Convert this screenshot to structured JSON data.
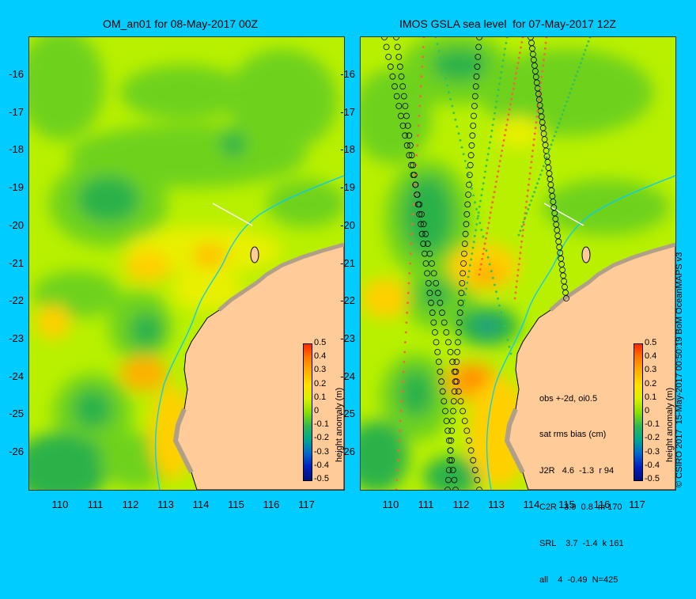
{
  "left_title": "OM_an01 for 08-May-2017 00Z",
  "right_title": "IMOS GSLA sea level  for 07-May-2017 12Z",
  "y_ticks": [
    "-16",
    "-17",
    "-18",
    "-19",
    "-20",
    "-21",
    "-22",
    "-23",
    "-24",
    "-25",
    "-26"
  ],
  "x_ticks": [
    "110",
    "111",
    "112",
    "113",
    "114",
    "115",
    "116",
    "117"
  ],
  "colorbar": {
    "label": "height anomaly (m)",
    "ticks": [
      "0.5",
      "0.4",
      "0.3",
      "0.2",
      "0.1",
      "0",
      "-0.1",
      "-0.2",
      "-0.3",
      "-0.4",
      "-0.5"
    ],
    "min": -0.5,
    "max": 0.5
  },
  "stats": {
    "line1": "obs +-2d, oi0.5",
    "line2": "sat rms bias (cm)",
    "rows": [
      "J2R   4.6  -1.3  r 94",
      "C2R   3.9  0.8  m 170",
      "SRL    3.7  -1.4  k 161",
      "all    4  -0.49  N=425"
    ]
  },
  "credit": "© CSIRO 2017  15-May-2017 00:50:19 BoM OceanMAPS v3",
  "colors": {
    "background": "#00ccff",
    "ocean_base": "#b8f000",
    "land": "#ffcc99",
    "coast_detail": "#b0a088",
    "coastline": "#000000",
    "shelf_isobath": "#00ccff"
  }
}
